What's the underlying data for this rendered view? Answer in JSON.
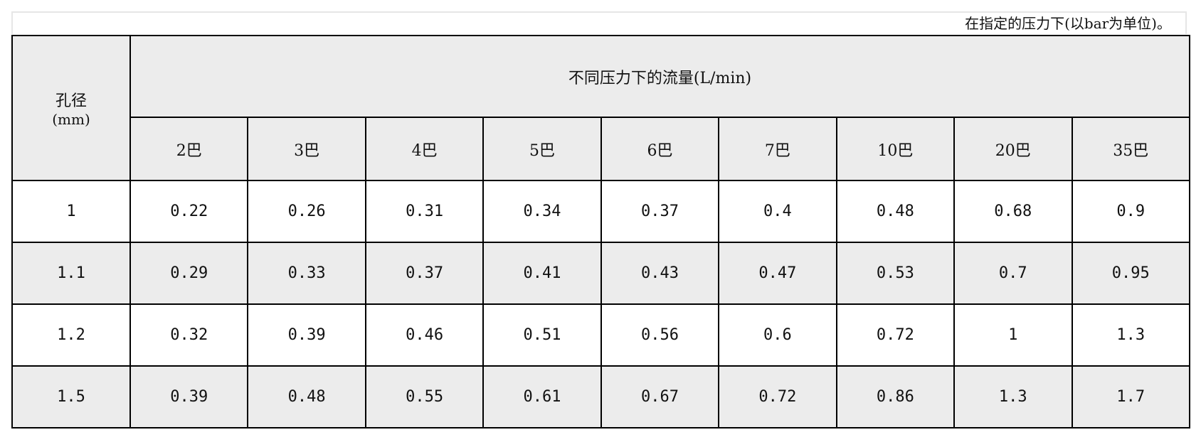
{
  "caption": "在指定的压力下(以bar为单位)。",
  "header": {
    "diameter_label": "孔径",
    "diameter_unit": "(mm)",
    "flow_label": "不同压力下的流量(L/min)",
    "pressures": [
      "2巴",
      "3巴",
      "4巴",
      "5巴",
      "6巴",
      "7巴",
      "10巴",
      "20巴",
      "35巴"
    ]
  },
  "rows": [
    {
      "diameter": "1",
      "values": [
        "0.22",
        "0.26",
        "0.31",
        "0.34",
        "0.37",
        "0.4",
        "0.48",
        "0.68",
        "0.9"
      ]
    },
    {
      "diameter": "1.1",
      "values": [
        "0.29",
        "0.33",
        "0.37",
        "0.41",
        "0.43",
        "0.47",
        "0.53",
        "0.7",
        "0.95"
      ]
    },
    {
      "diameter": "1.2",
      "values": [
        "0.32",
        "0.39",
        "0.46",
        "0.51",
        "0.56",
        "0.6",
        "0.72",
        "1",
        "1.3"
      ]
    },
    {
      "diameter": "1.5",
      "values": [
        "0.39",
        "0.48",
        "0.55",
        "0.61",
        "0.67",
        "0.72",
        "0.86",
        "1.3",
        "1.7"
      ]
    }
  ],
  "colors": {
    "header_bg": "#ececec",
    "alt_row_bg": "#ececec",
    "border": "#000000"
  }
}
